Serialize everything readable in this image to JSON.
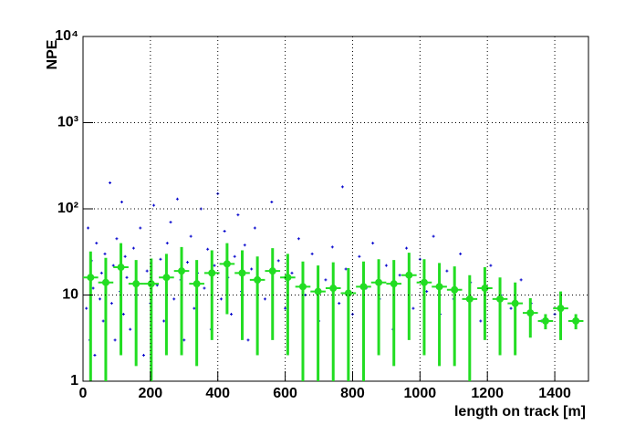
{
  "chart_data": {
    "type": "scatter-profile",
    "xlabel": "length on track [m]",
    "ylabel": "NPE",
    "xlim": [
      0,
      1500
    ],
    "ylim": [
      1,
      10000
    ],
    "log_y": true,
    "grid": true,
    "xticks": [
      0,
      200,
      400,
      600,
      800,
      1000,
      1200,
      1400
    ],
    "yticks": [
      1,
      10,
      {
        "value": 100,
        "label": "10²"
      },
      {
        "value": 1000,
        "label": "10³"
      },
      {
        "value": 10000,
        "label": "10⁴"
      }
    ],
    "scatter": {
      "color": "#0000cc",
      "x": [
        10,
        15,
        20,
        25,
        30,
        35,
        40,
        50,
        55,
        60,
        65,
        70,
        80,
        85,
        90,
        95,
        100,
        110,
        115,
        120,
        125,
        130,
        140,
        150,
        160,
        170,
        180,
        190,
        200,
        210,
        220,
        230,
        240,
        250,
        260,
        270,
        280,
        290,
        300,
        310,
        320,
        330,
        340,
        350,
        360,
        370,
        380,
        390,
        400,
        410,
        420,
        430,
        440,
        450,
        460,
        470,
        480,
        490,
        500,
        510,
        520,
        540,
        560,
        580,
        600,
        620,
        640,
        660,
        680,
        700,
        720,
        740,
        760,
        770,
        780,
        800,
        820,
        840,
        860,
        880,
        900,
        920,
        940,
        960,
        980,
        1000,
        1020,
        1040,
        1060,
        1080,
        1100,
        1120,
        1150,
        1180,
        1210,
        1240,
        1270,
        1300,
        1330,
        1360,
        1400
      ],
      "values": [
        7,
        60,
        3,
        25,
        12,
        2,
        40,
        9,
        18,
        5,
        30,
        14,
        200,
        8,
        22,
        3,
        45,
        11,
        120,
        6,
        28,
        16,
        4,
        35,
        10,
        60,
        2,
        19,
        8,
        110,
        13,
        26,
        5,
        40,
        70,
        9,
        130,
        15,
        3,
        24,
        48,
        7,
        18,
        100,
        12,
        34,
        4,
        22,
        150,
        9,
        55,
        16,
        6,
        28,
        85,
        11,
        38,
        3,
        20,
        60,
        14,
        9,
        120,
        25,
        7,
        18,
        45,
        10,
        30,
        5,
        15,
        36,
        8,
        180,
        20,
        6,
        28,
        12,
        40,
        9,
        22,
        4,
        17,
        35,
        7,
        26,
        11,
        48,
        6,
        19,
        9,
        30,
        14,
        5,
        22,
        10,
        7,
        15,
        8,
        5,
        6
      ]
    },
    "profile": {
      "color": "#22dd22",
      "x": [
        22.5,
        67.5,
        112.5,
        157.5,
        202.5,
        247.5,
        292.5,
        337.5,
        382.5,
        427.5,
        472.5,
        517.5,
        562.5,
        607.5,
        652.5,
        697.5,
        742.5,
        787.5,
        832.5,
        877.5,
        922.5,
        967.5,
        1012.5,
        1057.5,
        1102.5,
        1147.5,
        1192.5,
        1237.5,
        1282.5,
        1327.5,
        1372.5,
        1417.5,
        1462.5
      ],
      "values": [
        16,
        14,
        21,
        13.5,
        13.5,
        16,
        19,
        13.5,
        18,
        23,
        18,
        15,
        19,
        16,
        12.5,
        11,
        12,
        10.5,
        12.5,
        14,
        13.5,
        17,
        14,
        12.5,
        11.5,
        9,
        12,
        9,
        8,
        6.2,
        5,
        7,
        5
      ],
      "errors": [
        16,
        13,
        19,
        12,
        13,
        14,
        17,
        12,
        15,
        17,
        15,
        13,
        16,
        14,
        12,
        11,
        12,
        10,
        12,
        12,
        12,
        14,
        12,
        11,
        10,
        8,
        9,
        7,
        6,
        3,
        1,
        4,
        1
      ]
    }
  }
}
